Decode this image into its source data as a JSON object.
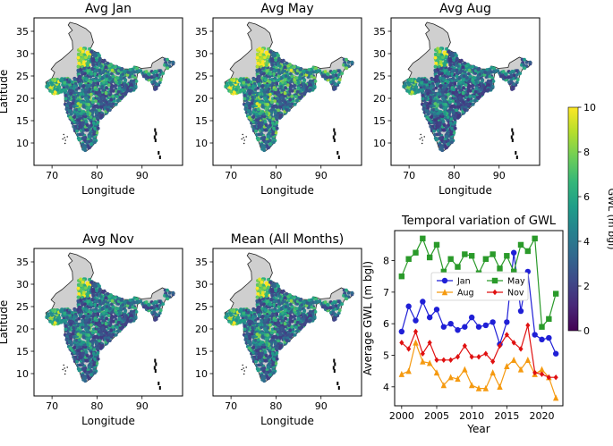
{
  "chart_data": [
    {
      "type": "heatmap",
      "title": "Avg Jan",
      "xlabel": "Longitude",
      "ylabel": "Latitude",
      "xlim": [
        66,
        99
      ],
      "ylim": [
        5,
        38
      ],
      "xticks": [
        70,
        80,
        90
      ],
      "yticks": [
        10,
        15,
        20,
        25,
        30,
        35
      ],
      "tone": 0.5
    },
    {
      "type": "heatmap",
      "title": "Avg May",
      "xlabel": "Longitude",
      "ylabel": "",
      "xlim": [
        66,
        99
      ],
      "ylim": [
        5,
        38
      ],
      "xticks": [
        70,
        80,
        90
      ],
      "yticks": [
        10,
        15,
        20,
        25,
        30,
        35
      ],
      "tone": 0.62
    },
    {
      "type": "heatmap",
      "title": "Avg Aug",
      "xlabel": "Longitude",
      "ylabel": "",
      "xlim": [
        66,
        99
      ],
      "ylim": [
        5,
        38
      ],
      "xticks": [
        70,
        80,
        90
      ],
      "yticks": [
        10,
        15,
        20,
        25,
        30,
        35
      ],
      "tone": 0.34
    },
    {
      "type": "heatmap",
      "title": "Avg Nov",
      "xlabel": "Longitude",
      "ylabel": "Latitude",
      "xlim": [
        66,
        99
      ],
      "ylim": [
        5,
        38
      ],
      "xticks": [
        70,
        80,
        90
      ],
      "yticks": [
        10,
        15,
        20,
        25,
        30,
        35
      ],
      "tone": 0.4
    },
    {
      "type": "heatmap",
      "title": "Mean (All Months)",
      "xlabel": "Longitude",
      "ylabel": "",
      "xlim": [
        66,
        99
      ],
      "ylim": [
        5,
        38
      ],
      "xticks": [
        70,
        80,
        90
      ],
      "yticks": [
        10,
        15,
        20,
        25,
        30,
        35
      ],
      "tone": 0.46
    },
    {
      "type": "line",
      "title": "Temporal variation of GWL",
      "xlabel": "Year",
      "ylabel": "Average GWL (m bgl)",
      "xlim": [
        1999,
        2023
      ],
      "ylim": [
        3.4,
        8.95
      ],
      "xticks": [
        2000,
        2005,
        2010,
        2015,
        2020
      ],
      "yticks": [
        4,
        5,
        6,
        7,
        8
      ],
      "x": [
        2000,
        2001,
        2002,
        2003,
        2004,
        2005,
        2006,
        2007,
        2008,
        2009,
        2010,
        2011,
        2012,
        2013,
        2014,
        2015,
        2016,
        2017,
        2018,
        2019,
        2020,
        2021,
        2022
      ],
      "series": [
        {
          "name": "Jan",
          "color": "#1f1fd6",
          "marker": "circle",
          "values": [
            5.75,
            6.55,
            6.1,
            6.7,
            6.2,
            6.45,
            5.9,
            6.0,
            5.8,
            5.9,
            6.2,
            5.9,
            5.95,
            6.05,
            5.35,
            6.05,
            8.25,
            6.4,
            7.65,
            5.65,
            5.5,
            5.55,
            5.05
          ]
        },
        {
          "name": "May",
          "color": "#2a9a2a",
          "marker": "square",
          "values": [
            7.5,
            8.05,
            8.25,
            8.7,
            8.1,
            8.5,
            7.65,
            8.05,
            7.8,
            8.2,
            8.15,
            7.6,
            8.05,
            8.2,
            7.75,
            8.15,
            7.65,
            8.5,
            8.3,
            8.7,
            5.9,
            6.15,
            6.95
          ]
        },
        {
          "name": "Aug",
          "color": "#f59a10",
          "marker": "triangle",
          "values": [
            4.4,
            4.5,
            5.4,
            4.8,
            4.75,
            4.45,
            4.05,
            4.3,
            4.25,
            4.55,
            4.05,
            3.95,
            3.95,
            4.45,
            4.0,
            4.65,
            4.85,
            4.55,
            4.85,
            4.4,
            4.55,
            4.3,
            3.65
          ]
        },
        {
          "name": "Nov",
          "color": "#e01010",
          "marker": "diamond",
          "values": [
            5.4,
            5.2,
            5.75,
            5.05,
            5.4,
            4.85,
            4.85,
            4.85,
            4.95,
            5.3,
            4.95,
            4.95,
            5.05,
            4.8,
            5.3,
            5.65,
            5.4,
            5.2,
            5.95,
            4.45,
            4.4,
            4.3,
            4.3
          ]
        }
      ],
      "legend_position": "upper center"
    }
  ],
  "colorbar": {
    "label": "GWL (m bgl)",
    "min": 0,
    "max": 10,
    "ticks": [
      0,
      2,
      4,
      6,
      8,
      10
    ],
    "colors": [
      "#440154",
      "#482878",
      "#3e4989",
      "#31688e",
      "#26828e",
      "#1f9e89",
      "#35b779",
      "#6ece58",
      "#b5de2b",
      "#fde725"
    ]
  }
}
